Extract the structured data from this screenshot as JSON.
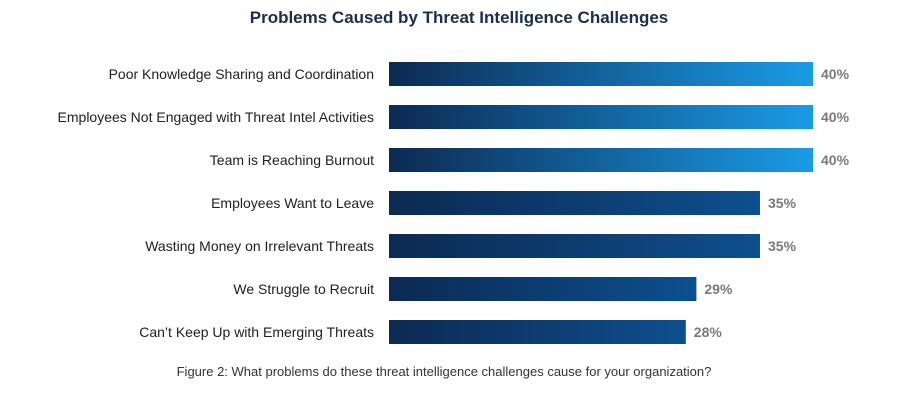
{
  "chart_data": {
    "type": "bar",
    "orientation": "horizontal",
    "title": "Problems Caused by Threat Intelligence Challenges",
    "categories": [
      "Poor Knowledge Sharing and Coordination",
      "Employees Not Engaged with Threat Intel Activities",
      "Team is Reaching Burnout",
      "Employees Want to Leave",
      "Wasting Money on Irrelevant Threats",
      "We Struggle to Recruit",
      "Can’t Keep Up with Emerging Threats"
    ],
    "values": [
      40,
      40,
      40,
      35,
      35,
      29,
      28
    ],
    "value_labels": [
      "40%",
      "40%",
      "40%",
      "35%",
      "35%",
      "29%",
      "28%"
    ],
    "unit": "%",
    "xlim": [
      0,
      40
    ],
    "grid": false,
    "legend": "none",
    "caption": "Figure 2: What problems do these threat intelligence challenges cause for your organization?"
  },
  "colors": {
    "bar_gradient_start": "#0c2a52",
    "bar_gradient_end_low": "#0d4f8f",
    "bar_gradient_end_high": "#1a9be6",
    "value_label": "#7a7a7a",
    "title": "#1b2e4b"
  }
}
